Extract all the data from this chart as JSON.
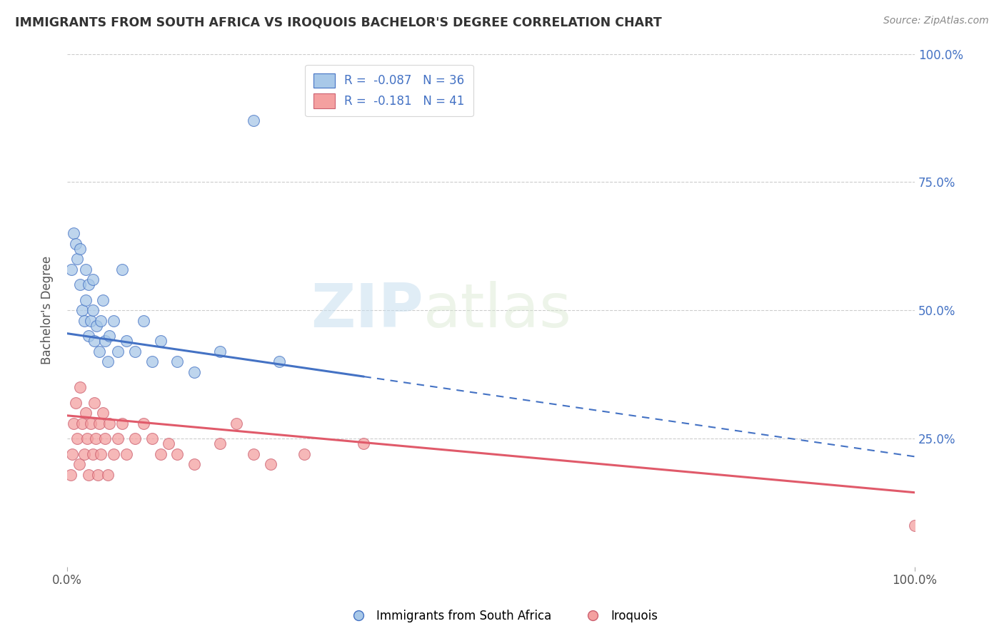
{
  "title": "IMMIGRANTS FROM SOUTH AFRICA VS IROQUOIS BACHELOR'S DEGREE CORRELATION CHART",
  "source_text": "Source: ZipAtlas.com",
  "ylabel": "Bachelor's Degree",
  "legend_labels": [
    "Immigrants from South Africa",
    "Iroquois"
  ],
  "R_blue": -0.087,
  "N_blue": 36,
  "R_pink": -0.181,
  "N_pink": 41,
  "blue_color": "#a8c8e8",
  "pink_color": "#f4a0a0",
  "blue_line_color": "#4472c4",
  "pink_line_color": "#e05a6a",
  "blue_scatter_x": [
    0.005,
    0.008,
    0.01,
    0.012,
    0.015,
    0.015,
    0.018,
    0.02,
    0.022,
    0.022,
    0.025,
    0.025,
    0.028,
    0.03,
    0.03,
    0.032,
    0.035,
    0.038,
    0.04,
    0.042,
    0.045,
    0.048,
    0.05,
    0.055,
    0.06,
    0.065,
    0.07,
    0.08,
    0.09,
    0.1,
    0.11,
    0.13,
    0.15,
    0.18,
    0.22,
    0.25
  ],
  "blue_scatter_y": [
    0.58,
    0.65,
    0.63,
    0.6,
    0.55,
    0.62,
    0.5,
    0.48,
    0.52,
    0.58,
    0.45,
    0.55,
    0.48,
    0.5,
    0.56,
    0.44,
    0.47,
    0.42,
    0.48,
    0.52,
    0.44,
    0.4,
    0.45,
    0.48,
    0.42,
    0.58,
    0.44,
    0.42,
    0.48,
    0.4,
    0.44,
    0.4,
    0.38,
    0.42,
    0.87,
    0.4
  ],
  "pink_scatter_x": [
    0.004,
    0.006,
    0.008,
    0.01,
    0.012,
    0.014,
    0.015,
    0.018,
    0.02,
    0.022,
    0.024,
    0.025,
    0.028,
    0.03,
    0.032,
    0.034,
    0.036,
    0.038,
    0.04,
    0.042,
    0.045,
    0.048,
    0.05,
    0.055,
    0.06,
    0.065,
    0.07,
    0.08,
    0.09,
    0.1,
    0.11,
    0.12,
    0.13,
    0.15,
    0.18,
    0.2,
    0.22,
    0.24,
    0.28,
    0.35,
    1.0
  ],
  "pink_scatter_y": [
    0.18,
    0.22,
    0.28,
    0.32,
    0.25,
    0.2,
    0.35,
    0.28,
    0.22,
    0.3,
    0.25,
    0.18,
    0.28,
    0.22,
    0.32,
    0.25,
    0.18,
    0.28,
    0.22,
    0.3,
    0.25,
    0.18,
    0.28,
    0.22,
    0.25,
    0.28,
    0.22,
    0.25,
    0.28,
    0.25,
    0.22,
    0.24,
    0.22,
    0.2,
    0.24,
    0.28,
    0.22,
    0.2,
    0.22,
    0.24,
    0.08
  ],
  "blue_line_start_x": 0.0,
  "blue_line_solid_end_x": 0.35,
  "blue_line_end_x": 1.0,
  "blue_line_start_y": 0.455,
  "blue_line_end_y": 0.215,
  "pink_line_start_x": 0.0,
  "pink_line_end_x": 1.0,
  "pink_line_start_y": 0.295,
  "pink_line_end_y": 0.145,
  "xlim": [
    0.0,
    1.0
  ],
  "ylim": [
    0.0,
    1.0
  ],
  "y_ticks": [
    0.25,
    0.5,
    0.75,
    1.0
  ],
  "y_tick_labels": [
    "25.0%",
    "50.0%",
    "75.0%",
    "100.0%"
  ],
  "x_ticks": [
    0.0,
    1.0
  ],
  "x_tick_labels": [
    "0.0%",
    "100.0%"
  ],
  "watermark_zip": "ZIP",
  "watermark_atlas": "atlas",
  "background_color": "#ffffff",
  "grid_color": "#cccccc"
}
